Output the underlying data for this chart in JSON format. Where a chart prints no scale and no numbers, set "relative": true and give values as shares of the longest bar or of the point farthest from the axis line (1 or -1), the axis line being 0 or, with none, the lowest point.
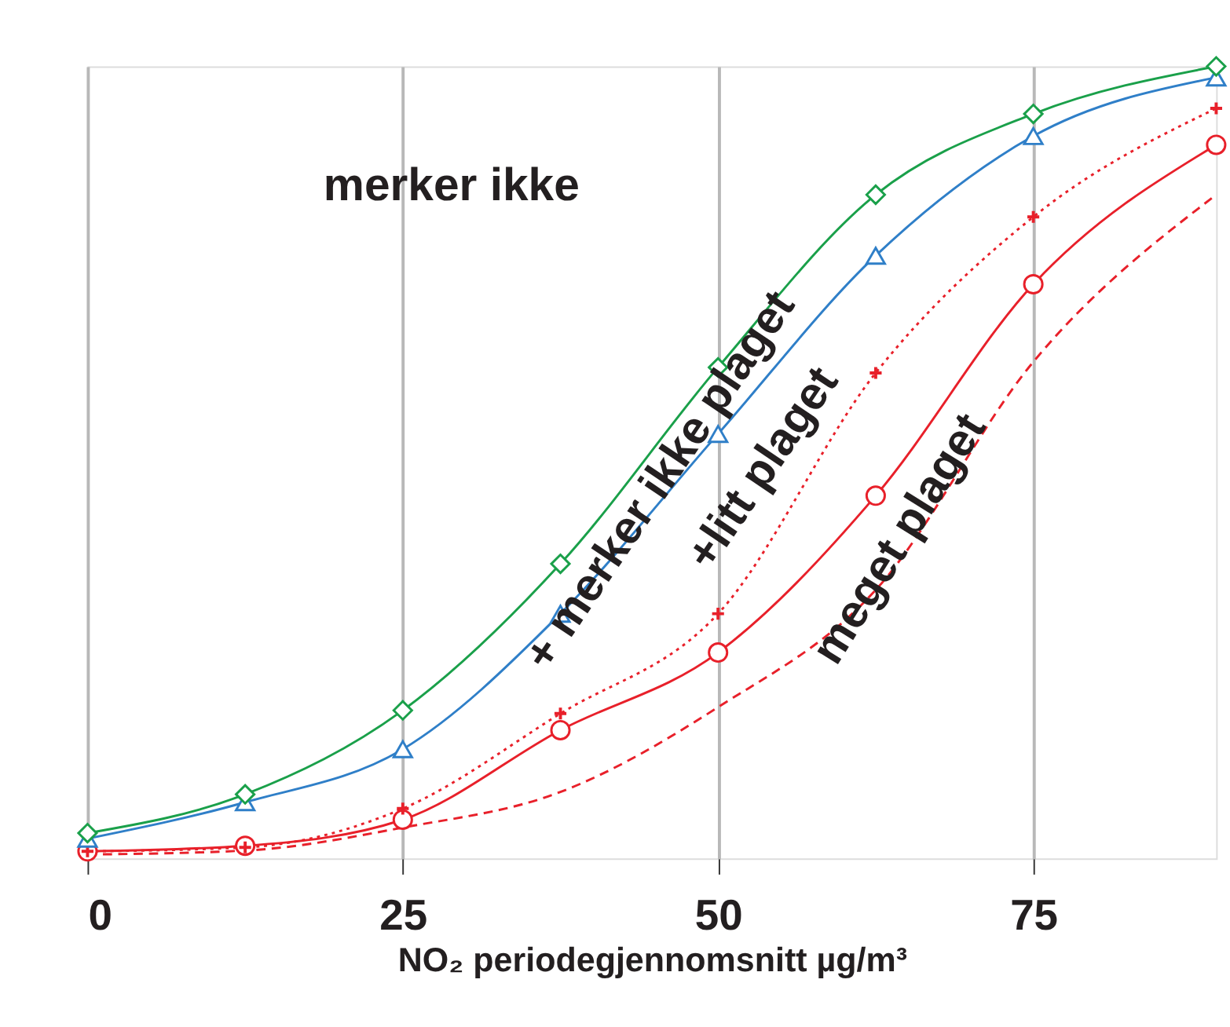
{
  "chart_data": {
    "type": "line",
    "xlabel": "NO₂ periodegjennomsnitt     µg/m³",
    "x": [
      0,
      12.5,
      25,
      37.5,
      50,
      62.5,
      75,
      89.5
    ],
    "relative": true,
    "series": [
      {
        "color": "#1aa04a",
        "marker": "diamond",
        "line_style": "solid",
        "values": [
          0.032,
          0.081,
          0.187,
          0.372,
          0.62,
          0.838,
          0.94,
          1
        ]
      },
      {
        "color": "#2f7fc8",
        "marker": "triangle",
        "line_style": "solid",
        "values": [
          0.025,
          0.071,
          0.138,
          0.309,
          0.536,
          0.761,
          0.912,
          0.986
        ]
      },
      {
        "color": "#e8202a",
        "marker": "cross",
        "line_style": "dotted",
        "values": [
          0.009,
          0.014,
          0.063,
          0.183,
          0.309,
          0.613,
          0.81,
          0.947
        ]
      },
      {
        "color": "#e8202a",
        "marker": "circle",
        "line_style": "solid",
        "values": [
          0.009,
          0.016,
          0.049,
          0.162,
          0.26,
          0.458,
          0.725,
          0.901
        ]
      },
      {
        "color": "#e8202a",
        "marker": "none",
        "line_style": "dashed",
        "values": [
          0.005,
          0.01,
          0.039,
          0.084,
          0.191,
          0.339,
          0.627,
          0.838
        ]
      }
    ],
    "xlim": [
      0,
      89.5
    ],
    "xticks": [
      0,
      25,
      50,
      75
    ],
    "annotations": [
      "merker ikke",
      "+ merker ikke plaget",
      "+litt plaget",
      "meget plaget"
    ],
    "grid": "x"
  }
}
